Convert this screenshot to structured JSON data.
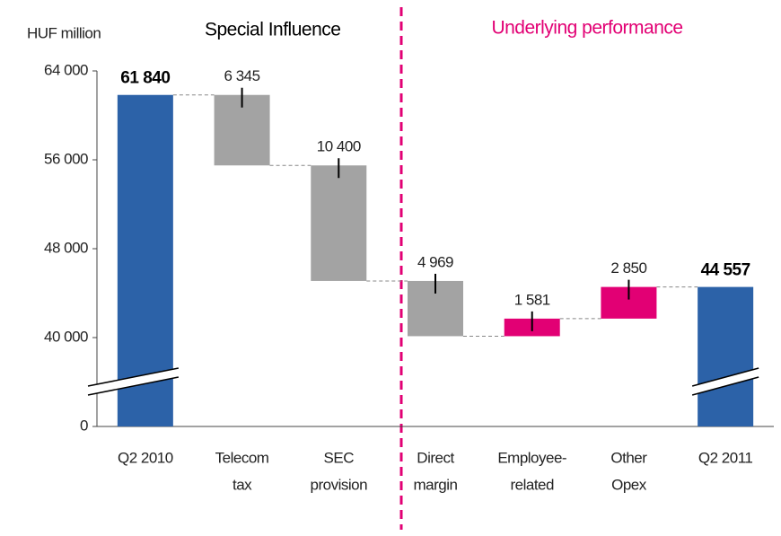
{
  "chart_data": {
    "type": "waterfall",
    "unit_label": "HUF million",
    "annotations": [
      "Special Influence",
      "Underlying performance"
    ],
    "categories": [
      [
        "Q2 2010"
      ],
      [
        "Telecom",
        "tax"
      ],
      [
        "SEC",
        "provision"
      ],
      [
        "Direct",
        "margin"
      ],
      [
        "Employee-",
        "related"
      ],
      [
        "Other",
        "Opex"
      ],
      [
        "Q2 2011"
      ]
    ],
    "measure": [
      "total",
      "relative",
      "relative",
      "relative",
      "relative",
      "relative",
      "total"
    ],
    "values": [
      61840,
      -6345,
      -10400,
      -4969,
      1581,
      2850,
      44557
    ],
    "value_labels": [
      "61 840",
      "6 345",
      "10 400",
      "4 969",
      "1 581",
      "2 850",
      "44 557"
    ],
    "colors": [
      "#2c62a8",
      "#a3a3a3",
      "#a3a3a3",
      "#a3a3a3",
      "#e20074",
      "#e20074",
      "#2c62a8"
    ],
    "ylim": [
      0,
      64000
    ],
    "axis_break": [
      0,
      32000
    ],
    "yticks": [
      {
        "value": 0,
        "label": "0"
      },
      {
        "value": 40000,
        "label": "40 000"
      },
      {
        "value": 48000,
        "label": "48 000"
      },
      {
        "value": 56000,
        "label": "56 000"
      },
      {
        "value": 64000,
        "label": "64 000"
      }
    ]
  }
}
